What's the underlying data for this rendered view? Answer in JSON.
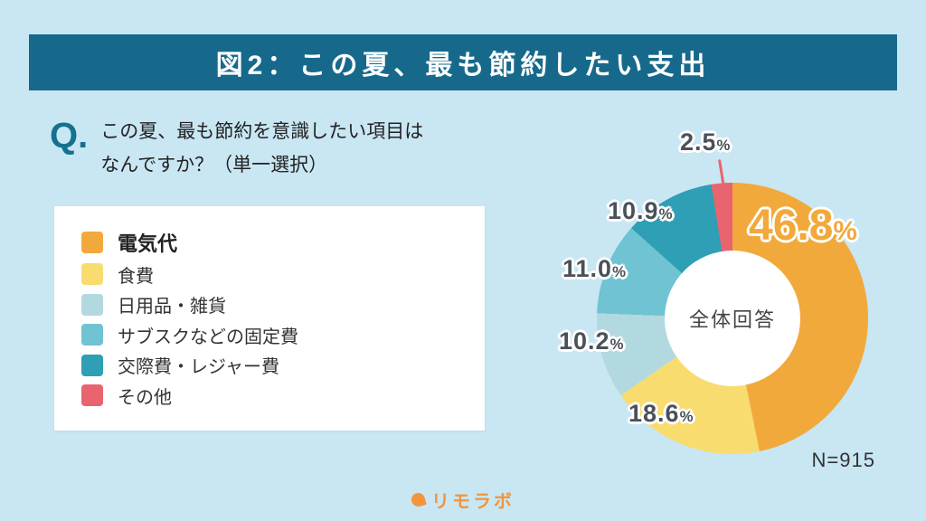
{
  "header": {
    "title": "図2：この夏、最も節約したい支出"
  },
  "question": {
    "prefix": "Q.",
    "line1": "この夏、最も節約を意識したい項目は",
    "line2": "なんですか？（単一選択）"
  },
  "footer": {
    "brand": "リモラボ"
  },
  "chart_data": {
    "type": "pie",
    "title": "図2：この夏、最も節約したい支出",
    "center_label": "全体回答",
    "percent_sign": "%",
    "sample_size": "N=915",
    "legend_position": "left",
    "start_angle_deg": 0,
    "direction": "clockwise",
    "segments": [
      {
        "label": "電気代",
        "value": 46.8,
        "display": "46.8",
        "color": "#F2A93B",
        "emphasis": true
      },
      {
        "label": "食費",
        "value": 18.6,
        "display": "18.6",
        "color": "#F8DC70",
        "emphasis": false
      },
      {
        "label": "日用品・雑貨",
        "value": 10.2,
        "display": "10.2",
        "color": "#B3D9E0",
        "emphasis": false
      },
      {
        "label": "サブスクなどの固定費",
        "value": 11.0,
        "display": "11.0",
        "color": "#6FC3D3",
        "emphasis": false
      },
      {
        "label": "交際費・レジャー費",
        "value": 10.9,
        "display": "10.9",
        "color": "#2E9FB4",
        "emphasis": false
      },
      {
        "label": "その他",
        "value": 2.5,
        "display": "2.5",
        "color": "#E8646E",
        "emphasis": false
      }
    ]
  }
}
